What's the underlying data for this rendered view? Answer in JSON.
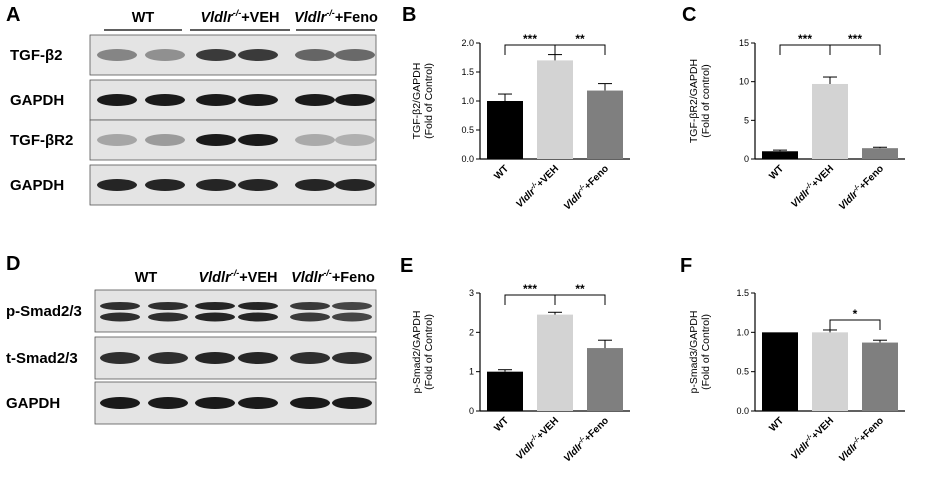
{
  "colors": {
    "wt": "#000000",
    "veh": "#d3d3d3",
    "feno": "#7f7f7f",
    "blot_bg": "#e4e4e4"
  },
  "blots": [
    {
      "panel": "A",
      "groups": [
        {
          "main": "WT",
          "sup": "",
          "tail": ""
        },
        {
          "main": "Vldlr",
          "sup": "-/-",
          "tail": "+VEH"
        },
        {
          "main": "Vldlr",
          "sup": "-/-",
          "tail": "+Feno"
        }
      ],
      "rows": [
        {
          "label": "TGF-β2",
          "intensities": [
            0.45,
            0.4,
            0.8,
            0.8,
            0.6,
            0.58
          ]
        },
        {
          "label": "GAPDH",
          "intensities": [
            0.95,
            0.95,
            0.95,
            0.95,
            0.95,
            0.95
          ]
        },
        {
          "label": "TGF-βR2",
          "intensities": [
            0.3,
            0.35,
            0.95,
            0.95,
            0.28,
            0.25
          ]
        },
        {
          "label": "GAPDH",
          "intensities": [
            0.9,
            0.9,
            0.9,
            0.9,
            0.9,
            0.9
          ]
        }
      ]
    },
    {
      "panel": "D",
      "groups": [
        {
          "main": "WT",
          "sup": "",
          "tail": ""
        },
        {
          "main": "Vldlr",
          "sup": "-/-",
          "tail": "+VEH"
        },
        {
          "main": "Vldlr",
          "sup": "-/-",
          "tail": "+Feno"
        }
      ],
      "rows": [
        {
          "label": "p-Smad2/3",
          "intensities": [
            0.85,
            0.85,
            0.9,
            0.9,
            0.8,
            0.75
          ],
          "double": true
        },
        {
          "label": "t-Smad2/3",
          "intensities": [
            0.85,
            0.85,
            0.9,
            0.9,
            0.85,
            0.85
          ]
        },
        {
          "label": "GAPDH",
          "intensities": [
            0.95,
            0.95,
            0.95,
            0.95,
            0.95,
            0.95
          ]
        }
      ]
    }
  ],
  "chart_data": [
    {
      "panel": "B",
      "type": "bar",
      "ylabel": [
        "TGF-β2/GAPDH",
        "(Fold of Control)"
      ],
      "categories": [
        "WT",
        "Vldlr-/-+VEH",
        "Vldlr-/-+Feno"
      ],
      "values": [
        1.0,
        1.7,
        1.18
      ],
      "errors": [
        0.12,
        0.1,
        0.12
      ],
      "ylim": [
        0,
        2.0
      ],
      "yticks": [
        "0.0",
        "0.5",
        "1.0",
        "1.5",
        "2.0"
      ],
      "significance": [
        {
          "from": 0,
          "to": 1,
          "label": "***"
        },
        {
          "from": 1,
          "to": 2,
          "label": "**"
        }
      ]
    },
    {
      "panel": "C",
      "type": "bar",
      "ylabel": [
        "TGF-βR2/GAPDH",
        "(Fold of control)"
      ],
      "categories": [
        "WT",
        "Vldlr-/-+VEH",
        "Vldlr-/-+Feno"
      ],
      "values": [
        1.0,
        9.7,
        1.4
      ],
      "errors": [
        0.15,
        0.9,
        0.12
      ],
      "ylim": [
        0,
        15
      ],
      "yticks": [
        "0",
        "5",
        "10",
        "15"
      ],
      "significance": [
        {
          "from": 0,
          "to": 1,
          "label": "***"
        },
        {
          "from": 1,
          "to": 2,
          "label": "***"
        }
      ]
    },
    {
      "panel": "E",
      "type": "bar",
      "ylabel": [
        "p-Smad2/GAPDH",
        "(Fold of Control)"
      ],
      "categories": [
        "WT",
        "Vldlr-/-+VEH",
        "Vldlr-/-+Feno"
      ],
      "values": [
        1.0,
        2.45,
        1.6
      ],
      "errors": [
        0.05,
        0.06,
        0.2
      ],
      "ylim": [
        0,
        3
      ],
      "yticks": [
        "0",
        "1",
        "2",
        "3"
      ],
      "significance": [
        {
          "from": 0,
          "to": 1,
          "label": "***"
        },
        {
          "from": 1,
          "to": 2,
          "label": "**"
        }
      ]
    },
    {
      "panel": "F",
      "type": "bar",
      "ylabel": [
        "p-Smad3/GAPDH",
        "(Fold of Control)"
      ],
      "categories": [
        "WT",
        "Vldlr-/-+VEH",
        "Vldlr-/-+Feno"
      ],
      "values": [
        1.0,
        1.0,
        0.87
      ],
      "errors": [
        0.0,
        0.03,
        0.03
      ],
      "ylim": [
        0,
        1.5
      ],
      "yticks": [
        "0.0",
        "0.5",
        "1.0",
        "1.5"
      ],
      "significance": [
        {
          "from": 1,
          "to": 2,
          "label": "*"
        }
      ]
    }
  ]
}
